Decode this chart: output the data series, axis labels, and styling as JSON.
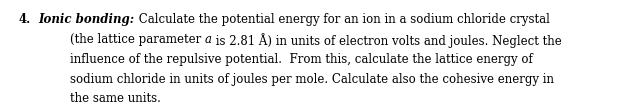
{
  "number": "4.",
  "topic_bolditalic": "Ionic bonding:",
  "line1_rest": " Calculate the potential energy for an ion in a sodium chloride crystal",
  "line2a": "    (the lattice parameter ",
  "line2b": "a",
  "line2c": " is 2.81 Å) in units of electron volts and joules. Neglect the",
  "line3": "    influence of the repulsive potential.  From this, calculate the lattice energy of",
  "line4": "    sodium chloride in units of joules per mole. Calculate also the cohesive energy in",
  "line5": "    the same units.",
  "background_color": "#ffffff",
  "text_color": "#000000",
  "font_size": 8.5,
  "fig_width": 6.26,
  "fig_height": 1.1,
  "dpi": 100
}
